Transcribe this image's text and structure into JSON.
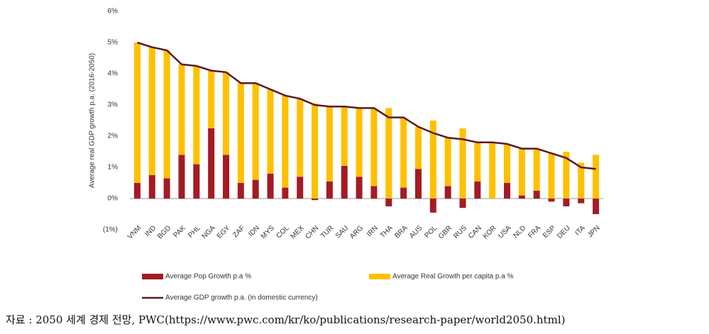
{
  "chart_data": {
    "type": "bar",
    "y_label": "Average real GDP growth p.a. (2016-2050)",
    "categories": [
      "VNM",
      "IND",
      "BGD",
      "PAK",
      "PHL",
      "NGA",
      "EGY",
      "ZAF",
      "IDN",
      "MYS",
      "COL",
      "MEX",
      "CHN",
      "TUR",
      "SAU",
      "ARG",
      "IRN",
      "THA",
      "BRA",
      "AUS",
      "POL",
      "GBR",
      "RUS",
      "CAN",
      "KOR",
      "USA",
      "NLD",
      "FRA",
      "ESP",
      "DEU",
      "ITA",
      "JPN"
    ],
    "series": [
      {
        "name": "Average Pop Growth p.a %",
        "color": "#a31b25",
        "values": [
          0.5,
          0.75,
          0.65,
          1.4,
          1.1,
          2.25,
          1.4,
          0.5,
          0.6,
          0.8,
          0.35,
          0.7,
          -0.05,
          0.55,
          1.05,
          0.7,
          0.4,
          -0.25,
          0.35,
          0.95,
          -0.45,
          0.4,
          -0.3,
          0.55,
          0.0,
          0.5,
          0.1,
          0.25,
          -0.1,
          -0.25,
          -0.15,
          -0.5
        ]
      },
      {
        "name": "Average Real Growth per capita p.a %",
        "color": "#ffc000",
        "values": [
          4.5,
          4.1,
          4.1,
          2.9,
          3.15,
          1.85,
          2.65,
          3.2,
          3.1,
          2.7,
          2.95,
          2.5,
          3.05,
          2.4,
          1.9,
          2.2,
          2.5,
          2.9,
          2.25,
          1.35,
          2.5,
          1.55,
          2.25,
          1.25,
          1.8,
          1.25,
          1.5,
          1.35,
          1.45,
          1.5,
          1.15,
          1.4
        ]
      },
      {
        "name": "Average GDP growth p.a. (in domestic currency)",
        "color": "#5a1a1e",
        "type": "line",
        "values": [
          5.0,
          4.85,
          4.75,
          4.3,
          4.25,
          4.1,
          4.05,
          3.7,
          3.7,
          3.5,
          3.3,
          3.2,
          3.0,
          2.95,
          2.95,
          2.9,
          2.9,
          2.6,
          2.6,
          2.3,
          2.1,
          1.95,
          1.9,
          1.8,
          1.8,
          1.75,
          1.6,
          1.6,
          1.45,
          1.3,
          1.0,
          0.95
        ]
      }
    ],
    "ylim": [
      -1,
      6
    ],
    "yticks": [
      {
        "value": -1,
        "label": "(1%)"
      },
      {
        "value": 0,
        "label": "0%"
      },
      {
        "value": 1,
        "label": "1%"
      },
      {
        "value": 2,
        "label": "2%"
      },
      {
        "value": 3,
        "label": "3%"
      },
      {
        "value": 4,
        "label": "4%"
      },
      {
        "value": 5,
        "label": "5%"
      },
      {
        "value": 6,
        "label": "6%"
      }
    ],
    "stacked": true,
    "grid": false
  },
  "caption": "자료 : 2050 세계 경제 전망, PWC(https://www.pwc.com/kr/ko/publications/research-paper/world2050.html)"
}
